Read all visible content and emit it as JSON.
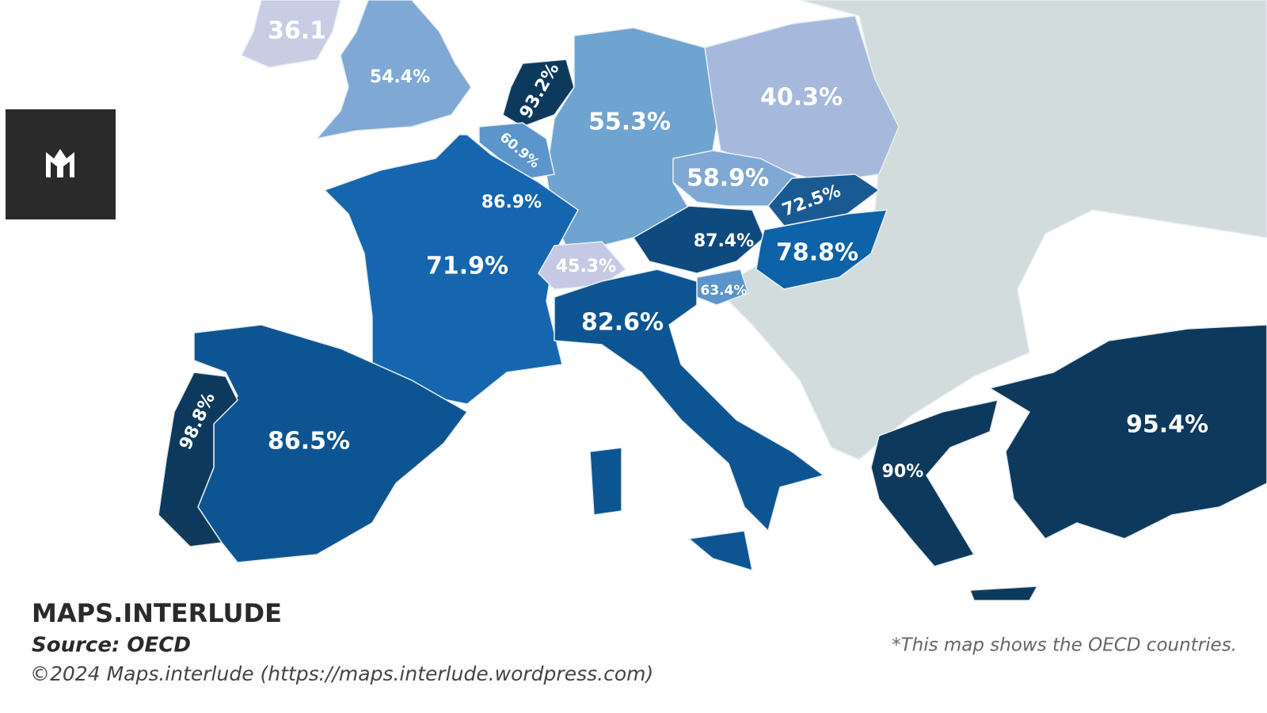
{
  "map": {
    "labels": [
      "36.1",
      "54.4%",
      "93.2%",
      "55.3%",
      "40.3%",
      "60.9%",
      "86.9%",
      "58.9%",
      "72.5%",
      "87.4%",
      "78.8%",
      "71.9%",
      "45.3%",
      "63.4%",
      "82.6%",
      "98.8%",
      "86.5%",
      "90%",
      "95.4%"
    ]
  },
  "footer": {
    "brand": "MAPS.INTERLUDE",
    "source": "Source: OECD",
    "copyright": "©2024 Maps.interlude (https://maps.interlude.wordpress.com)",
    "note": "*This map shows the OECD countries."
  }
}
